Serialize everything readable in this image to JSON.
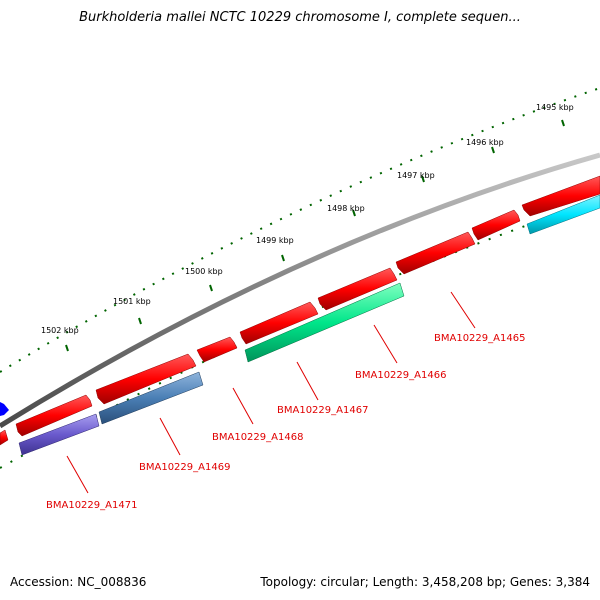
{
  "title": "Burkholderia mallei NCTC 10229 chromosome I, complete sequen...",
  "footer": {
    "accession": "Accession: NC_008836",
    "stats": "Topology: circular; Length: 3,458,208 bp; Genes: 3,384"
  },
  "scale_labels": [
    "1495 kbp",
    "1496 kbp",
    "1497 kbp",
    "1498 kbp",
    "1499 kbp",
    "1500 kbp",
    "1501 kbp",
    "1502 kbp"
  ],
  "gene_labels": [
    "BMA10229_A1465",
    "BMA10229_A1466",
    "BMA10229_A1467",
    "BMA10229_A1468",
    "BMA10229_A1469",
    "BMA10229_A1471"
  ],
  "colors": {
    "backbone": "#808080",
    "forward_genes": "#ff0000",
    "label_text": "#e00000",
    "tick_marks": "#006400",
    "A1465_cog": "#00e5ff",
    "A1467_cog": "#00e68a",
    "A1469_cog": "#4a7fb5",
    "A1471_cog": "#6a5acd",
    "edge_feature": "#0000ff"
  }
}
